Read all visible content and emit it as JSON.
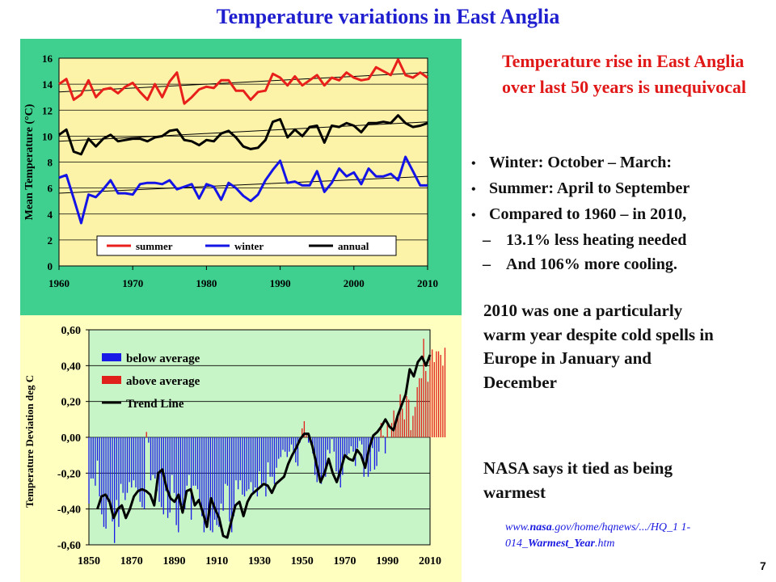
{
  "title": "Temperature variations in East Anglia",
  "rise_text": "Temperature rise in East Anglia over last 50 years is unequivocal",
  "bullets": [
    "Winter: October – March:",
    "Summer: April to September",
    "Compared to 1960 – in 2010,"
  ],
  "sub_bullets": [
    "13.1% less heating needed",
    "And 106% more cooling."
  ],
  "warm_text": "2010 was one a particularly warm year despite cold spells in Europe in January and December",
  "nasa_text": "NASA says it tied as being warmest",
  "url": {
    "prefix": "www.",
    "bold": "nasa",
    "mid": ".gov/home/hqnews/.../HQ_1 1-014_",
    "bold2": "Warmest_Year",
    "suffix": ".htm"
  },
  "page_number": "7",
  "colors": {
    "title": "#1f1fd0",
    "rise": "#e01818",
    "summer": "#e8201c",
    "winter": "#1414e6",
    "annual": "#000000",
    "top_panel": "#3fcf8e",
    "top_plot": "#fdf3a8",
    "bottom_panel": "#ffffc0",
    "bottom_plot": "#c8f5c8",
    "below_average": "#1a1ae6",
    "above_average": "#e0201a"
  },
  "chart_data": [
    {
      "type": "line",
      "ylabel": "Mean Temperature (°C)",
      "xlabel": "",
      "xlim": [
        1960,
        2010
      ],
      "ylim": [
        0,
        16
      ],
      "xticks": [
        "1960",
        "1970",
        "1980",
        "1990",
        "2000",
        "2010"
      ],
      "yticks": [
        "0",
        "2",
        "4",
        "6",
        "8",
        "10",
        "12",
        "14",
        "16"
      ],
      "legend_position": "bottom-inside",
      "grid": true,
      "x": [
        1960,
        1961,
        1962,
        1963,
        1964,
        1965,
        1966,
        1967,
        1968,
        1969,
        1970,
        1971,
        1972,
        1973,
        1974,
        1975,
        1976,
        1977,
        1978,
        1979,
        1980,
        1981,
        1982,
        1983,
        1984,
        1985,
        1986,
        1987,
        1988,
        1989,
        1990,
        1991,
        1992,
        1993,
        1994,
        1995,
        1996,
        1997,
        1998,
        1999,
        2000,
        2001,
        2002,
        2003,
        2004,
        2005,
        2006,
        2007,
        2008,
        2009,
        2010
      ],
      "series": [
        {
          "name": "summer",
          "color": "#e8201c",
          "values": [
            14.0,
            14.4,
            12.8,
            13.2,
            14.3,
            13.0,
            13.6,
            13.7,
            13.3,
            13.8,
            14.1,
            13.4,
            12.8,
            14.0,
            13.0,
            14.2,
            14.9,
            12.5,
            13.0,
            13.6,
            13.8,
            13.7,
            14.3,
            14.3,
            13.5,
            13.5,
            12.8,
            13.4,
            13.5,
            14.8,
            14.5,
            13.9,
            14.6,
            13.9,
            14.3,
            14.7,
            13.9,
            14.5,
            14.3,
            14.9,
            14.5,
            14.3,
            14.4,
            15.3,
            15.0,
            14.7,
            15.9,
            14.7,
            14.5,
            14.9,
            14.5
          ]
        },
        {
          "name": "winter",
          "color": "#1414e6",
          "values": [
            6.8,
            7.0,
            5.2,
            3.3,
            5.5,
            5.3,
            5.9,
            6.6,
            5.6,
            5.6,
            5.5,
            6.3,
            6.4,
            6.4,
            6.3,
            6.6,
            5.9,
            6.1,
            6.3,
            5.2,
            6.3,
            6.1,
            5.1,
            6.4,
            6.0,
            5.4,
            5.0,
            5.5,
            6.6,
            7.4,
            8.1,
            6.4,
            6.5,
            6.2,
            6.2,
            7.3,
            5.7,
            6.4,
            7.5,
            6.9,
            7.2,
            6.3,
            7.5,
            6.9,
            6.9,
            7.1,
            6.6,
            8.4,
            7.3,
            6.2,
            6.2
          ]
        },
        {
          "name": "annual",
          "color": "#000000",
          "values": [
            10.1,
            10.5,
            8.8,
            8.6,
            9.8,
            9.2,
            9.8,
            10.1,
            9.6,
            9.7,
            9.8,
            9.8,
            9.6,
            9.9,
            10.0,
            10.4,
            10.5,
            9.7,
            9.6,
            9.3,
            9.7,
            9.6,
            10.2,
            10.4,
            9.9,
            9.2,
            9.0,
            9.1,
            9.7,
            11.1,
            11.3,
            9.9,
            10.5,
            10.0,
            10.7,
            10.8,
            9.5,
            10.8,
            10.7,
            11.0,
            10.8,
            10.3,
            11.0,
            11.0,
            11.1,
            11.0,
            11.6,
            11.0,
            10.7,
            10.8,
            11.0
          ]
        }
      ],
      "trend_lines": [
        {
          "series": "summer",
          "start": [
            1960,
            13.4
          ],
          "end": [
            2010,
            14.9
          ]
        },
        {
          "series": "annual",
          "start": [
            1960,
            9.6
          ],
          "end": [
            2010,
            11.1
          ]
        },
        {
          "series": "winter",
          "start": [
            1960,
            5.6
          ],
          "end": [
            2010,
            6.9
          ]
        }
      ]
    },
    {
      "type": "bar",
      "ylabel": "Temperature Deviation deg C",
      "xlabel": "",
      "xlim": [
        1850,
        2010
      ],
      "ylim": [
        -0.6,
        0.6
      ],
      "xticks": [
        "1850",
        "1870",
        "1890",
        "1910",
        "1930",
        "1950",
        "1970",
        "1990",
        "2010"
      ],
      "yticks": [
        "-0,60",
        "-0,40",
        "-0,20",
        "0,00",
        "0,20",
        "0,40",
        "0,60"
      ],
      "legend_position": "top-left",
      "grid": true,
      "series_names": [
        "below average",
        "above average",
        "Trend Line"
      ],
      "x_start": 1850,
      "values": [
        -0.37,
        -0.23,
        -0.23,
        -0.27,
        -0.13,
        -0.33,
        -0.43,
        -0.5,
        -0.51,
        -0.36,
        -0.36,
        -0.47,
        -0.59,
        -0.35,
        -0.5,
        -0.26,
        -0.31,
        -0.35,
        -0.31,
        -0.25,
        -0.28,
        -0.24,
        -0.28,
        -0.3,
        -0.36,
        -0.39,
        -0.4,
        0.03,
        -0.03,
        -0.24,
        -0.21,
        -0.23,
        -0.3,
        -0.36,
        -0.39,
        -0.43,
        -0.3,
        -0.45,
        -0.42,
        -0.21,
        -0.31,
        -0.49,
        -0.53,
        -0.36,
        -0.38,
        -0.4,
        -0.27,
        -0.21,
        -0.46,
        -0.27,
        -0.27,
        -0.29,
        -0.35,
        -0.44,
        -0.53,
        -0.46,
        -0.42,
        -0.52,
        -0.53,
        -0.46,
        -0.49,
        -0.5,
        -0.37,
        -0.41,
        -0.26,
        -0.27,
        -0.47,
        -0.53,
        -0.44,
        -0.24,
        -0.29,
        -0.24,
        -0.32,
        -0.33,
        -0.3,
        -0.29,
        -0.25,
        -0.31,
        -0.28,
        -0.33,
        -0.19,
        -0.28,
        -0.25,
        -0.33,
        -0.14,
        -0.22,
        -0.22,
        -0.26,
        -0.17,
        -0.12,
        -0.11,
        -0.07,
        -0.08,
        -0.11,
        -0.08,
        -0.04,
        -0.09,
        -0.14,
        -0.16,
        -0.03,
        0.05,
        0.09,
        0.02,
        -0.03,
        -0.01,
        -0.09,
        -0.21,
        -0.25,
        -0.23,
        -0.26,
        -0.2,
        -0.22,
        -0.07,
        -0.09,
        -0.01,
        -0.08,
        -0.19,
        -0.22,
        -0.28,
        -0.21,
        -0.1,
        -0.1,
        -0.09,
        -0.05,
        -0.08,
        -0.16,
        -0.06,
        -0.02,
        -0.04,
        -0.22,
        -0.16,
        -0.22,
        -0.19,
        -0.06,
        -0.18,
        -0.16,
        -0.08,
        0.08,
        0.01,
        -0.09,
        0.07,
        0.0,
        0.08,
        0.15,
        0.09,
        0.14,
        0.24,
        0.16,
        0.1,
        0.23,
        0.21,
        0.04,
        0.12,
        0.17,
        0.28,
        0.33,
        0.33,
        0.55,
        0.37,
        0.31,
        0.43,
        0.49,
        0.42,
        0.48,
        0.48,
        0.46,
        0.4,
        0.5
      ],
      "trend": [
        -0.4,
        -0.33,
        -0.32,
        -0.36,
        -0.45,
        -0.4,
        -0.38,
        -0.45,
        -0.4,
        -0.33,
        -0.3,
        -0.29,
        -0.3,
        -0.32,
        -0.38,
        -0.2,
        -0.18,
        -0.28,
        -0.34,
        -0.36,
        -0.32,
        -0.42,
        -0.3,
        -0.29,
        -0.38,
        -0.35,
        -0.42,
        -0.5,
        -0.34,
        -0.4,
        -0.45,
        -0.55,
        -0.56,
        -0.47,
        -0.38,
        -0.36,
        -0.44,
        -0.36,
        -0.32,
        -0.3,
        -0.28,
        -0.26,
        -0.27,
        -0.31,
        -0.26,
        -0.24,
        -0.22,
        -0.15,
        -0.1,
        -0.06,
        -0.01,
        0.02,
        0.02,
        -0.05,
        -0.15,
        -0.25,
        -0.2,
        -0.12,
        -0.2,
        -0.25,
        -0.18,
        -0.1,
        -0.12,
        -0.13,
        -0.07,
        -0.1,
        -0.17,
        -0.06,
        0.01,
        0.03,
        0.06,
        0.1,
        0.06,
        0.04,
        0.12,
        0.18,
        0.24,
        0.38,
        0.34,
        0.42,
        0.45,
        0.4,
        0.46
      ]
    }
  ]
}
